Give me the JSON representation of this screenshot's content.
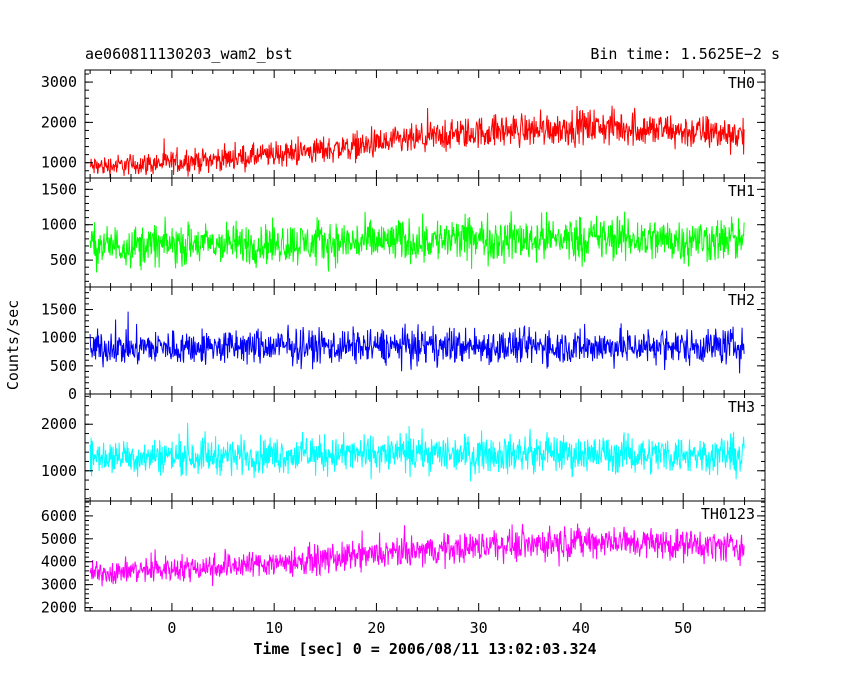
{
  "header": {
    "title": "ae060811130203_wam2_bst",
    "bin_time": "Bin time: 1.5625E−2 s"
  },
  "chart_data": {
    "type": "line",
    "title": "ae060811130203_wam2_bst",
    "subtitle": "Bin time: 1.5625E−2 s",
    "xlabel": "Time [sec] 0 = 2006/08/11 13:02:03.324",
    "ylabel": "Counts/sec",
    "xlim": [
      -8.5,
      58
    ],
    "xticks": [
      0,
      10,
      20,
      30,
      40,
      50
    ],
    "grid": false,
    "legend": "none",
    "panels": [
      {
        "name": "TH0",
        "color": "#ff0000",
        "ylim": [
          620,
          3300
        ],
        "yticks": [
          1000,
          2000,
          3000
        ],
        "x": [
          -8,
          -4,
          0,
          4,
          8,
          12,
          16,
          20,
          24,
          28,
          32,
          36,
          40,
          44,
          48,
          52,
          56
        ],
        "mean": [
          900,
          950,
          1000,
          1080,
          1150,
          1250,
          1350,
          1450,
          1580,
          1700,
          1800,
          1820,
          1900,
          1870,
          1800,
          1750,
          1700
        ],
        "spread": [
          380,
          400,
          420,
          430,
          450,
          470,
          500,
          520,
          550,
          580,
          600,
          620,
          640,
          650,
          640,
          630,
          620
        ],
        "data_end": 56
      },
      {
        "name": "TH1",
        "color": "#00ff00",
        "ylim": [
          120,
          1660
        ],
        "yticks": [
          500,
          1000,
          1500
        ],
        "x": [
          -8,
          0,
          10,
          20,
          30,
          40,
          50,
          56
        ],
        "mean": [
          700,
          720,
          730,
          760,
          800,
          810,
          790,
          780
        ],
        "spread": [
          420,
          430,
          440,
          450,
          470,
          470,
          460,
          460
        ],
        "data_end": 56
      },
      {
        "name": "TH2",
        "color": "#0000ff",
        "ylim": [
          0,
          1900
        ],
        "yticks": [
          0,
          500,
          1000,
          1500
        ],
        "x": [
          -8,
          0,
          10,
          20,
          30,
          40,
          50,
          56
        ],
        "mean": [
          820,
          830,
          840,
          850,
          850,
          840,
          850,
          860
        ],
        "spread": [
          450,
          460,
          460,
          470,
          470,
          460,
          470,
          470
        ],
        "data_end": 56
      },
      {
        "name": "TH3",
        "color": "#00ffff",
        "ylim": [
          350,
          2650
        ],
        "yticks": [
          1000,
          2000
        ],
        "x": [
          -8,
          0,
          10,
          20,
          30,
          40,
          50,
          56
        ],
        "mean": [
          1300,
          1320,
          1340,
          1360,
          1380,
          1360,
          1350,
          1350
        ],
        "spread": [
          560,
          570,
          580,
          590,
          600,
          590,
          590,
          590
        ],
        "data_end": 56
      },
      {
        "name": "TH0123",
        "color": "#ff00ff",
        "ylim": [
          1850,
          6650
        ],
        "yticks": [
          2000,
          3000,
          4000,
          5000,
          6000
        ],
        "x": [
          -8,
          -4,
          0,
          4,
          8,
          12,
          16,
          20,
          24,
          28,
          32,
          36,
          40,
          44,
          48,
          52,
          56
        ],
        "mean": [
          3500,
          3600,
          3700,
          3800,
          3900,
          4000,
          4150,
          4300,
          4450,
          4600,
          4750,
          4800,
          4900,
          4850,
          4800,
          4700,
          4650
        ],
        "spread": [
          800,
          820,
          840,
          860,
          880,
          900,
          920,
          940,
          960,
          980,
          1000,
          1010,
          1020,
          1020,
          1010,
          1000,
          990
        ],
        "data_end": 56
      }
    ]
  }
}
